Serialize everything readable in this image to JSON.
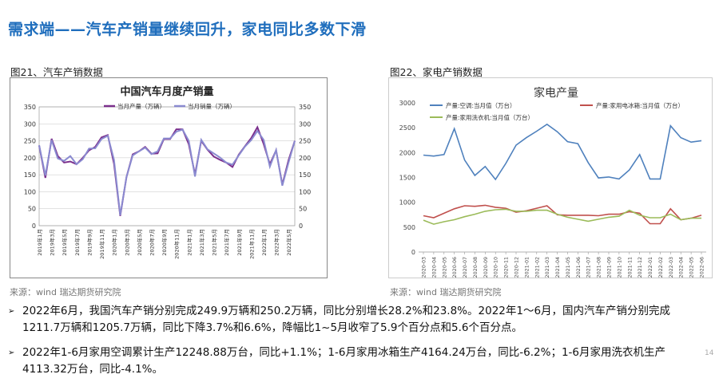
{
  "page": {
    "title": "需求端——汽车产销量继续回升，家电同比多数下滑",
    "fig_left_caption": "图21、汽车产销数据",
    "fig_right_caption": "图22、家电产销数据",
    "source_left": "来源：wind   瑞达期货研究院",
    "source_right": "来源：wind   瑞达期货研究院",
    "bullets": [
      {
        "lines": [
          "2022年6月，我国汽车产销分别完成249.9万辆和250.2万辆，同比分别增长28.2%和23.8%。2022年1～6月，国内汽车产销分别完成",
          "1211.7万辆和1205.7万辆，同比下降3.7%和6.6%，降幅比1~5月收窄了5.9个百分点和5.6个百分点。"
        ]
      },
      {
        "lines": [
          "2022年1-6月家用空调累计生产12248.88万台，同比+1.1%；1-6月家用冰箱生产4164.24万台，同比-6.2%；1-6月家用洗衣机生产",
          "4113.32万台，同比-4.1%。"
        ]
      }
    ],
    "page_number": "14"
  },
  "chart_data": [
    {
      "type": "line",
      "title": "中国汽车月度产销量",
      "x": [
        "2019年1月",
        "2019年2月",
        "2019年3月",
        "2019年4月",
        "2019年5月",
        "2019年6月",
        "2019年7月",
        "2019年8月",
        "2019年9月",
        "2019年10月",
        "2019年11月",
        "2019年12月",
        "2020年1月",
        "2020年2月",
        "2020年3月",
        "2020年4月",
        "2020年5月",
        "2020年6月",
        "2020年7月",
        "2020年8月",
        "2020年9月",
        "2020年10月",
        "2020年11月",
        "2020年12月",
        "2021年1月",
        "2021年2月",
        "2021年3月",
        "2021年4月",
        "2021年5月",
        "2021年6月",
        "2021年7月",
        "2021年8月",
        "2021年9月",
        "2021年10月",
        "2021年11月",
        "2021年12月",
        "2022年1月",
        "2022年2月",
        "2022年3月",
        "2022年4月",
        "2022年5月",
        "2022年6月"
      ],
      "xtick_labels": [
        "2019年1月",
        "2019年3月",
        "2019年5月",
        "2019年7月",
        "2019年9月",
        "2019年11月",
        "2020年1月",
        "2020年3月",
        "2020年5月",
        "2020年7月",
        "2020年9月",
        "2020年11月",
        "2021年1月",
        "2021年3月",
        "2021年5月",
        "2021年7月",
        "2021年9月",
        "2021年11月",
        "2022年1月",
        "2022年3月",
        "2022年5月"
      ],
      "series": [
        {
          "name": "当月产量（万辆）",
          "color": "#7b2f8c",
          "values": [
            236,
            141,
            256,
            205,
            186,
            189,
            181,
            200,
            222,
            232,
            260,
            267,
            183,
            29,
            143,
            210,
            219,
            232,
            212,
            213,
            255,
            255,
            284,
            284,
            240,
            151,
            250,
            224,
            204,
            194,
            186,
            173,
            209,
            234,
            258,
            290,
            241,
            181,
            222,
            121,
            193,
            250
          ]
        },
        {
          "name": "当月销量（万辆）",
          "color": "#8a8ad0",
          "values": [
            237,
            148,
            252,
            198,
            191,
            205,
            181,
            196,
            227,
            228,
            255,
            265,
            194,
            31,
            143,
            207,
            219,
            230,
            211,
            219,
            257,
            257,
            277,
            283,
            250,
            145,
            253,
            225,
            213,
            201,
            186,
            180,
            207,
            233,
            252,
            279,
            253,
            174,
            223,
            118,
            186,
            250
          ]
        }
      ],
      "ylim": [
        0,
        350
      ],
      "yticks": [
        0,
        50,
        100,
        150,
        200,
        250,
        300,
        350
      ],
      "dual_axis": true
    },
    {
      "type": "line",
      "title": "家电产量",
      "x": [
        "2020-03",
        "2020-04",
        "2020-05",
        "2020-06",
        "2020-07",
        "2020-08",
        "2020-09",
        "2020-10",
        "2020-11",
        "2020-12",
        "2021-01",
        "2021-02",
        "2021-03",
        "2021-04",
        "2021-05",
        "2021-06",
        "2021-07",
        "2021-08",
        "2021-09",
        "2021-10",
        "2021-11",
        "2021-12",
        "2022-01",
        "2022-02",
        "2022-03",
        "2022-04",
        "2022-05",
        "2022-06"
      ],
      "series": [
        {
          "name": "产量:空调:当月值（万台）",
          "color": "#4f81bd",
          "values": [
            1950,
            1930,
            1960,
            2480,
            1850,
            1540,
            1720,
            1460,
            1780,
            2150,
            2300,
            2430,
            2570,
            2420,
            2220,
            2180,
            1800,
            1490,
            1510,
            1470,
            1650,
            1960,
            1470,
            1470,
            2540,
            2300,
            2210,
            2240
          ]
        },
        {
          "name": "产量:家用电冰箱:当月值（万台）",
          "color": "#c0504d",
          "values": [
            730,
            690,
            780,
            870,
            930,
            920,
            940,
            900,
            880,
            800,
            830,
            880,
            930,
            750,
            740,
            740,
            740,
            730,
            760,
            760,
            810,
            780,
            570,
            570,
            870,
            650,
            680,
            740
          ]
        },
        {
          "name": "产量:家用洗衣机:当月值（万台）",
          "color": "#9bbb59",
          "values": [
            640,
            560,
            610,
            650,
            710,
            760,
            820,
            850,
            860,
            820,
            820,
            840,
            840,
            760,
            700,
            660,
            620,
            660,
            700,
            720,
            840,
            740,
            690,
            690,
            760,
            650,
            680,
            680
          ]
        }
      ],
      "ylim": [
        0,
        3000
      ],
      "yticks": [
        0,
        500,
        1000,
        1500,
        2000,
        2500,
        3000
      ]
    }
  ]
}
